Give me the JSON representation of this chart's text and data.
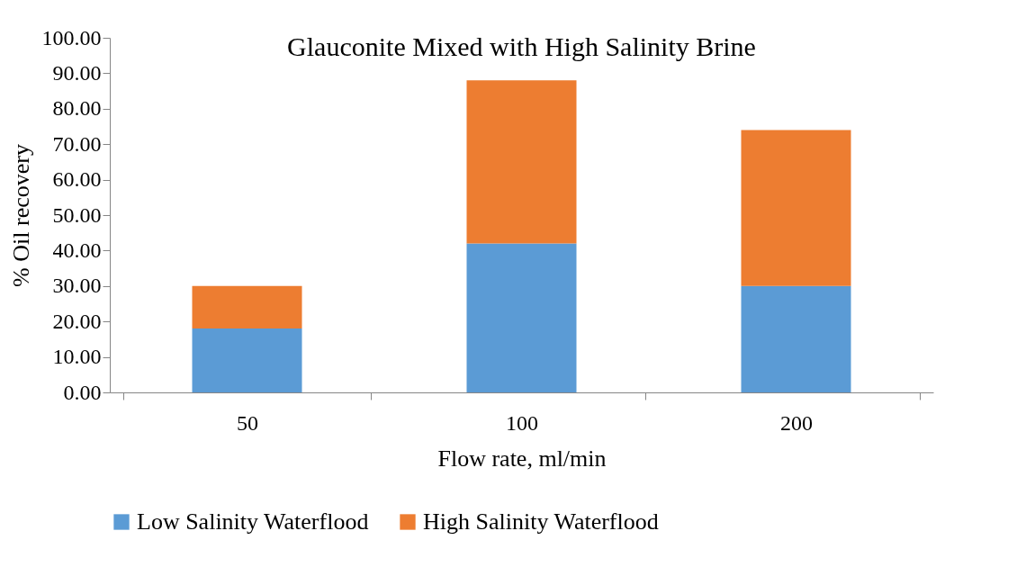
{
  "chart_data": {
    "type": "bar",
    "title": "Glauconite Mixed with High Salinity Brine",
    "xlabel": "Flow rate, ml/min",
    "ylabel": "% Oil recovery",
    "categories": [
      "50",
      "100",
      "200"
    ],
    "stacked": true,
    "series": [
      {
        "name": "Low Salinity Waterflood",
        "color": "#5b9bd5",
        "values": [
          18,
          42,
          30
        ]
      },
      {
        "name": "High Salinity Waterflood",
        "color": "#ed7d31",
        "values": [
          12,
          46,
          44
        ]
      }
    ],
    "ylim": [
      0,
      100
    ],
    "yticks": [
      {
        "value": 0,
        "label": "0.00"
      },
      {
        "value": 10,
        "label": "10.00"
      },
      {
        "value": 20,
        "label": "20.00"
      },
      {
        "value": 30,
        "label": "30.00"
      },
      {
        "value": 40,
        "label": "40.00"
      },
      {
        "value": 50,
        "label": "50.00"
      },
      {
        "value": 60,
        "label": "60.00"
      },
      {
        "value": 70,
        "label": "70.00"
      },
      {
        "value": 80,
        "label": "80.00"
      },
      {
        "value": 90,
        "label": "90.00"
      },
      {
        "value": 100,
        "label": "100.00"
      }
    ],
    "grid": false,
    "legend": "bottom"
  }
}
